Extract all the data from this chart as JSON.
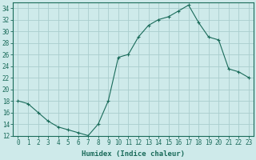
{
  "x": [
    0,
    1,
    2,
    3,
    4,
    5,
    6,
    7,
    8,
    9,
    10,
    11,
    12,
    13,
    14,
    15,
    16,
    17,
    18,
    19,
    20,
    21,
    22,
    23
  ],
  "y": [
    18,
    17.5,
    16,
    14.5,
    13.5,
    13,
    12.5,
    12,
    14,
    18,
    25.5,
    26,
    29,
    31,
    32,
    32.5,
    33.5,
    34.5,
    31.5,
    29,
    28.5,
    23.5,
    23,
    22
  ],
  "line_color": "#1a6b5a",
  "marker": "+",
  "marker_size": 3,
  "bg_color": "#ceeaea",
  "grid_color": "#aacece",
  "xlabel": "Humidex (Indice chaleur)",
  "xlim": [
    -0.5,
    23.5
  ],
  "ylim": [
    12,
    35
  ],
  "yticks": [
    12,
    14,
    16,
    18,
    20,
    22,
    24,
    26,
    28,
    30,
    32,
    34
  ],
  "xticks": [
    0,
    1,
    2,
    3,
    4,
    5,
    6,
    7,
    8,
    9,
    10,
    11,
    12,
    13,
    14,
    15,
    16,
    17,
    18,
    19,
    20,
    21,
    22,
    23
  ],
  "label_fontsize": 6.5,
  "tick_fontsize": 5.5
}
